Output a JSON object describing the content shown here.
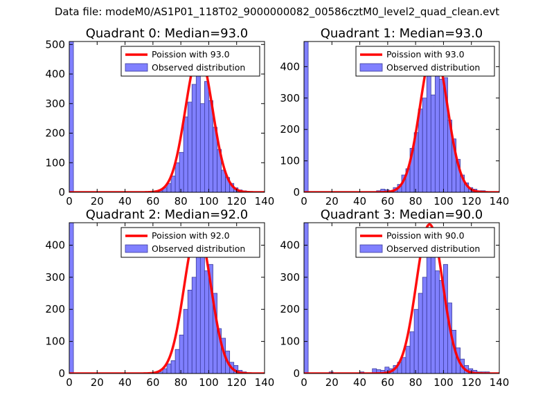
{
  "suptitle": "Data file: modeM0/AS1P01_118T02_9000000082_00586cztM0_level2_quad_clean.evt",
  "colors": {
    "bar_fill": "#8080ff",
    "bar_edge": "#3b3b9a",
    "curve": "#ff0000",
    "frame": "#000000"
  },
  "chart_data": [
    {
      "type": "bar",
      "title": "Quadrant 0: Median=93.0",
      "xlim": [
        0,
        140
      ],
      "ylim": [
        0,
        510
      ],
      "xticks": [
        0,
        20,
        40,
        60,
        80,
        100,
        120,
        140
      ],
      "yticks": [
        0,
        100,
        200,
        300,
        400,
        500
      ],
      "bin_width": 3,
      "bins": [
        [
          0,
          510
        ],
        [
          64,
          5
        ],
        [
          67,
          15
        ],
        [
          70,
          30
        ],
        [
          73,
          55
        ],
        [
          76,
          100
        ],
        [
          79,
          135
        ],
        [
          82,
          255
        ],
        [
          85,
          305
        ],
        [
          88,
          365
        ],
        [
          91,
          470
        ],
        [
          94,
          300
        ],
        [
          97,
          375
        ],
        [
          100,
          310
        ],
        [
          103,
          220
        ],
        [
          106,
          145
        ],
        [
          109,
          75
        ],
        [
          112,
          50
        ],
        [
          115,
          30
        ],
        [
          118,
          15
        ],
        [
          121,
          8
        ],
        [
          124,
          5
        ],
        [
          127,
          2
        ]
      ],
      "curve_label": "Poission with 93.0",
      "hist_label": "Observed distribution",
      "curve": {
        "mean": 93.0,
        "peak": 470,
        "sigma": 9.64
      }
    },
    {
      "type": "bar",
      "title": "Quadrant 1: Median=93.0",
      "xlim": [
        0,
        140
      ],
      "ylim": [
        0,
        480
      ],
      "xticks": [
        0,
        20,
        40,
        60,
        80,
        100,
        120,
        140
      ],
      "yticks": [
        0,
        100,
        200,
        300,
        400
      ],
      "bin_width": 3,
      "bins": [
        [
          0,
          480
        ],
        [
          52,
          5
        ],
        [
          55,
          10
        ],
        [
          58,
          8
        ],
        [
          61,
          5
        ],
        [
          64,
          15
        ],
        [
          67,
          25
        ],
        [
          70,
          55
        ],
        [
          73,
          75
        ],
        [
          76,
          140
        ],
        [
          79,
          190
        ],
        [
          82,
          265
        ],
        [
          85,
          300
        ],
        [
          88,
          380
        ],
        [
          91,
          310
        ],
        [
          94,
          410
        ],
        [
          97,
          360
        ],
        [
          100,
          365
        ],
        [
          103,
          230
        ],
        [
          106,
          170
        ],
        [
          109,
          105
        ],
        [
          112,
          55
        ],
        [
          115,
          30
        ],
        [
          118,
          15
        ],
        [
          121,
          10
        ],
        [
          124,
          5
        ],
        [
          127,
          5
        ]
      ],
      "curve_label": "Poission with 93.0",
      "hist_label": "Observed distribution",
      "curve": {
        "mean": 93.0,
        "peak": 462,
        "sigma": 9.64
      }
    },
    {
      "type": "bar",
      "title": "Quadrant 2: Median=92.0",
      "xlim": [
        0,
        140
      ],
      "ylim": [
        0,
        470
      ],
      "xticks": [
        0,
        20,
        40,
        60,
        80,
        100,
        120,
        140
      ],
      "yticks": [
        0,
        100,
        200,
        300,
        400
      ],
      "bin_width": 3,
      "bins": [
        [
          0,
          470
        ],
        [
          64,
          5
        ],
        [
          67,
          15
        ],
        [
          70,
          30
        ],
        [
          73,
          40
        ],
        [
          76,
          75
        ],
        [
          79,
          120
        ],
        [
          82,
          200
        ],
        [
          85,
          260
        ],
        [
          88,
          300
        ],
        [
          91,
          450
        ],
        [
          94,
          390
        ],
        [
          97,
          320
        ],
        [
          100,
          340
        ],
        [
          103,
          250
        ],
        [
          106,
          140
        ],
        [
          109,
          110
        ],
        [
          112,
          70
        ],
        [
          115,
          35
        ],
        [
          118,
          25
        ],
        [
          121,
          10
        ],
        [
          124,
          5
        ]
      ],
      "curve_label": "Poission with 92.0",
      "hist_label": "Observed distribution",
      "curve": {
        "mean": 92.0,
        "peak": 450,
        "sigma": 9.59
      }
    },
    {
      "type": "bar",
      "title": "Quadrant 3: Median=90.0",
      "xlim": [
        0,
        140
      ],
      "ylim": [
        0,
        470
      ],
      "xticks": [
        0,
        20,
        40,
        60,
        80,
        100,
        120,
        140
      ],
      "yticks": [
        0,
        100,
        200,
        300,
        400
      ],
      "bin_width": 3,
      "bins": [
        [
          0,
          470
        ],
        [
          18,
          5
        ],
        [
          40,
          5
        ],
        [
          49,
          15
        ],
        [
          52,
          12
        ],
        [
          55,
          10
        ],
        [
          58,
          20
        ],
        [
          61,
          15
        ],
        [
          64,
          25
        ],
        [
          67,
          35
        ],
        [
          70,
          50
        ],
        [
          73,
          85
        ],
        [
          76,
          130
        ],
        [
          79,
          200
        ],
        [
          82,
          250
        ],
        [
          85,
          300
        ],
        [
          88,
          400
        ],
        [
          91,
          390
        ],
        [
          94,
          320
        ],
        [
          97,
          290
        ],
        [
          100,
          340
        ],
        [
          103,
          220
        ],
        [
          106,
          135
        ],
        [
          109,
          80
        ],
        [
          112,
          45
        ],
        [
          115,
          25
        ],
        [
          118,
          15
        ],
        [
          121,
          10
        ],
        [
          124,
          5
        ],
        [
          127,
          5
        ],
        [
          130,
          5
        ]
      ],
      "curve_label": "Poission with 90.0",
      "hist_label": "Observed distribution",
      "curve": {
        "mean": 90.0,
        "peak": 465,
        "sigma": 9.49
      }
    }
  ]
}
